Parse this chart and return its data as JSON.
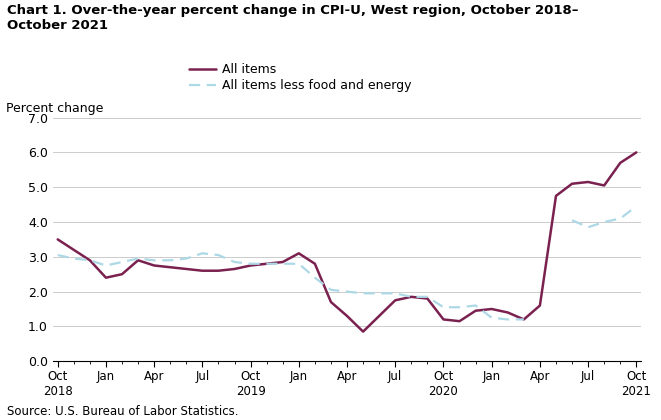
{
  "title_line1": "Chart 1. Over-the-year percent change in CPI-U, West region, October 2018–",
  "title_line2": "October 2021",
  "ylabel": "Percent change",
  "source": "Source: U.S. Bureau of Labor Statistics.",
  "ylim": [
    0.0,
    7.0
  ],
  "yticks": [
    0.0,
    1.0,
    2.0,
    3.0,
    4.0,
    5.0,
    6.0,
    7.0
  ],
  "legend_labels": [
    "All items",
    "All items less food and energy"
  ],
  "all_items_color": "#7b2150",
  "core_color": "#add8e6",
  "all_items": [
    3.5,
    3.2,
    2.9,
    2.4,
    2.5,
    2.9,
    2.75,
    2.7,
    2.65,
    2.6,
    2.6,
    2.65,
    2.75,
    2.8,
    2.85,
    3.1,
    2.8,
    1.7,
    1.3,
    0.85,
    1.3,
    1.75,
    1.85,
    1.8,
    1.2,
    1.15,
    1.45,
    1.5,
    1.4,
    1.2,
    1.6,
    4.75,
    5.1,
    5.15,
    5.05,
    5.7,
    6.0
  ],
  "core": [
    3.05,
    2.95,
    2.9,
    2.75,
    2.85,
    2.95,
    2.9,
    2.9,
    2.95,
    3.1,
    3.05,
    2.85,
    2.8,
    2.8,
    2.8,
    2.8,
    2.4,
    2.05,
    2.0,
    1.95,
    1.95,
    1.95,
    1.85,
    1.85,
    1.55,
    1.55,
    1.6,
    1.25,
    1.2,
    1.2,
    null,
    null,
    4.05,
    3.85,
    4.0,
    4.1,
    4.45
  ],
  "n_points": 37,
  "major_tick_positions": [
    0,
    3,
    6,
    9,
    12,
    15,
    18,
    21,
    24,
    27,
    30,
    33,
    36
  ],
  "major_tick_labels": [
    "Oct\n2018",
    "Jan",
    "Apr",
    "Jul",
    "Oct\n2019",
    "Jan",
    "Apr",
    "Jul",
    "Oct\n2020",
    "Jan",
    "Apr",
    "Jul",
    "Oct\n2021"
  ]
}
